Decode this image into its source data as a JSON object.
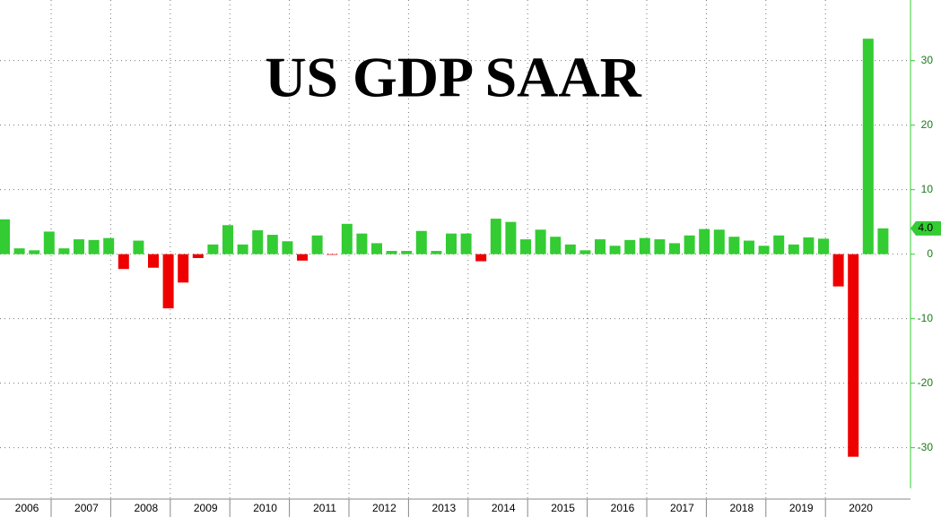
{
  "chart_data": {
    "type": "bar",
    "title": "US GDP SAAR",
    "years": [
      "2006",
      "2007",
      "2008",
      "2009",
      "2010",
      "2011",
      "2012",
      "2013",
      "2014",
      "2015",
      "2016",
      "2017",
      "2018",
      "2019",
      "2020"
    ],
    "values": [
      5.4,
      0.9,
      0.6,
      3.5,
      0.9,
      2.3,
      2.2,
      2.5,
      -2.3,
      2.1,
      -2.1,
      -8.4,
      -4.4,
      -0.6,
      1.5,
      4.5,
      1.5,
      3.7,
      3.0,
      2.0,
      -1.0,
      2.9,
      -0.1,
      4.7,
      3.2,
      1.7,
      0.5,
      0.5,
      3.6,
      0.5,
      3.2,
      3.2,
      -1.1,
      5.5,
      5.0,
      2.3,
      3.8,
      2.7,
      1.5,
      0.6,
      2.3,
      1.3,
      2.2,
      2.5,
      2.3,
      1.7,
      2.9,
      3.9,
      3.8,
      2.7,
      2.1,
      1.3,
      2.9,
      1.5,
      2.6,
      2.4,
      -5.0,
      -31.4,
      33.4,
      4.0
    ],
    "value_labels": [
      null,
      null,
      null,
      null,
      null,
      null,
      null,
      null,
      null,
      null,
      null,
      null,
      null,
      null,
      null,
      null,
      null,
      null,
      null,
      null,
      null,
      null,
      null,
      null,
      null,
      null,
      null,
      null,
      null,
      null,
      null,
      null,
      null,
      null,
      null,
      null,
      null,
      null,
      null,
      null,
      null,
      null,
      null,
      null,
      null,
      null,
      null,
      null,
      null,
      null,
      null,
      null,
      null,
      null,
      null,
      null,
      null,
      null,
      null,
      "4.0"
    ],
    "positive_color": "#33cc33",
    "negative_color": "#ee0000",
    "ylim": [
      -36.3,
      39.4
    ],
    "yticks": [
      30,
      20,
      10,
      0,
      -10,
      -20,
      -30
    ],
    "grid": true
  }
}
